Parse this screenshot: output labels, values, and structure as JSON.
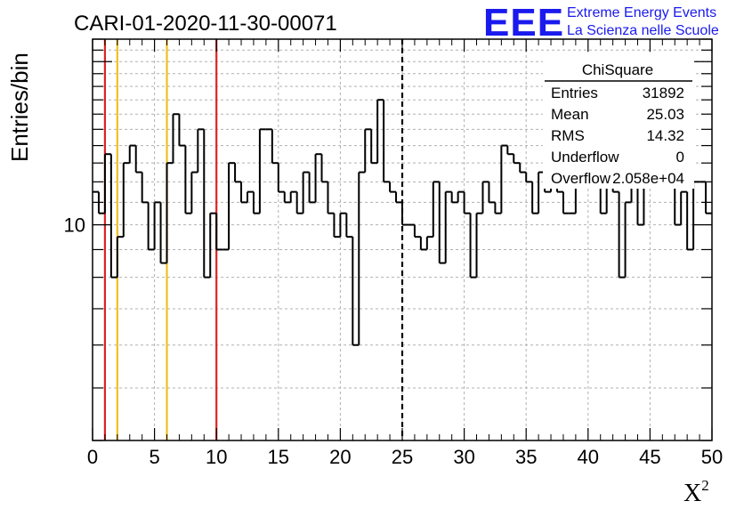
{
  "header": {
    "run_title": "CARI-01-2020-11-30-00071",
    "logo_text": "EEE",
    "org_line1": "Extreme Energy Events",
    "org_line2": "La Scienza nelle Scuole"
  },
  "stats_box": {
    "title": "ChiSquare",
    "rows": [
      {
        "label": "Entries",
        "value": "31892"
      },
      {
        "label": "Mean",
        "value": "25.03"
      },
      {
        "label": "RMS",
        "value": "14.32"
      },
      {
        "label": "Underflow",
        "value": "0"
      },
      {
        "label": "Overflow",
        "value": "2.058e+04"
      }
    ]
  },
  "colors": {
    "red_line": "#dd2222",
    "yellow_line": "#f0c020",
    "logo_blue": "#1a1aee",
    "grid": "#b0b0b0"
  },
  "chart_data": {
    "type": "histogram",
    "title": "CARI-01-2020-11-30-00071",
    "xlabel": "X",
    "xlabel_superscript": "2",
    "ylabel": "Entries/bin",
    "xlim": [
      0,
      50
    ],
    "ylim": [
      4,
      22
    ],
    "yscale": "log",
    "bin_width": 0.5,
    "x_ticks": [
      0,
      5,
      10,
      15,
      20,
      25,
      30,
      35,
      40,
      45,
      50
    ],
    "y_tick_labels": [
      {
        "value": 10,
        "label": "10"
      }
    ],
    "grid": true,
    "vertical_markers": [
      {
        "x": 1,
        "color": "red",
        "style": "solid"
      },
      {
        "x": 2,
        "color": "yellow",
        "style": "solid"
      },
      {
        "x": 6,
        "color": "yellow",
        "style": "solid"
      },
      {
        "x": 10,
        "color": "red",
        "style": "solid"
      },
      {
        "x": 25,
        "color": "black",
        "style": "dashed"
      }
    ],
    "values": [
      11.5,
      10.5,
      13.5,
      8,
      9.5,
      13,
      14,
      12.5,
      11,
      9,
      11,
      8.5,
      13,
      16,
      14,
      10.5,
      12.5,
      15,
      8,
      10.5,
      9,
      9,
      13,
      12,
      11,
      11.5,
      10.5,
      15,
      15,
      13,
      11.5,
      11,
      11.5,
      10.5,
      12.5,
      11,
      13.5,
      12,
      10.5,
      9.5,
      10.5,
      9.5,
      6,
      12.5,
      15,
      13,
      17,
      12,
      11.5,
      11,
      10,
      10,
      9.5,
      9,
      9.5,
      12,
      8.5,
      11.5,
      11,
      11.5,
      10.5,
      8,
      10.5,
      12,
      11,
      10.5,
      14,
      13.5,
      13,
      12.5,
      12,
      10.5,
      12.5,
      11.5,
      12.5,
      11.5,
      10.5,
      10.5,
      13,
      12.5,
      12,
      12,
      10.5,
      12.5,
      11.5,
      8,
      11,
      12.5,
      10,
      14,
      12.5,
      13.5,
      13,
      12,
      10,
      11.5,
      9,
      12,
      12,
      10.5
    ]
  }
}
